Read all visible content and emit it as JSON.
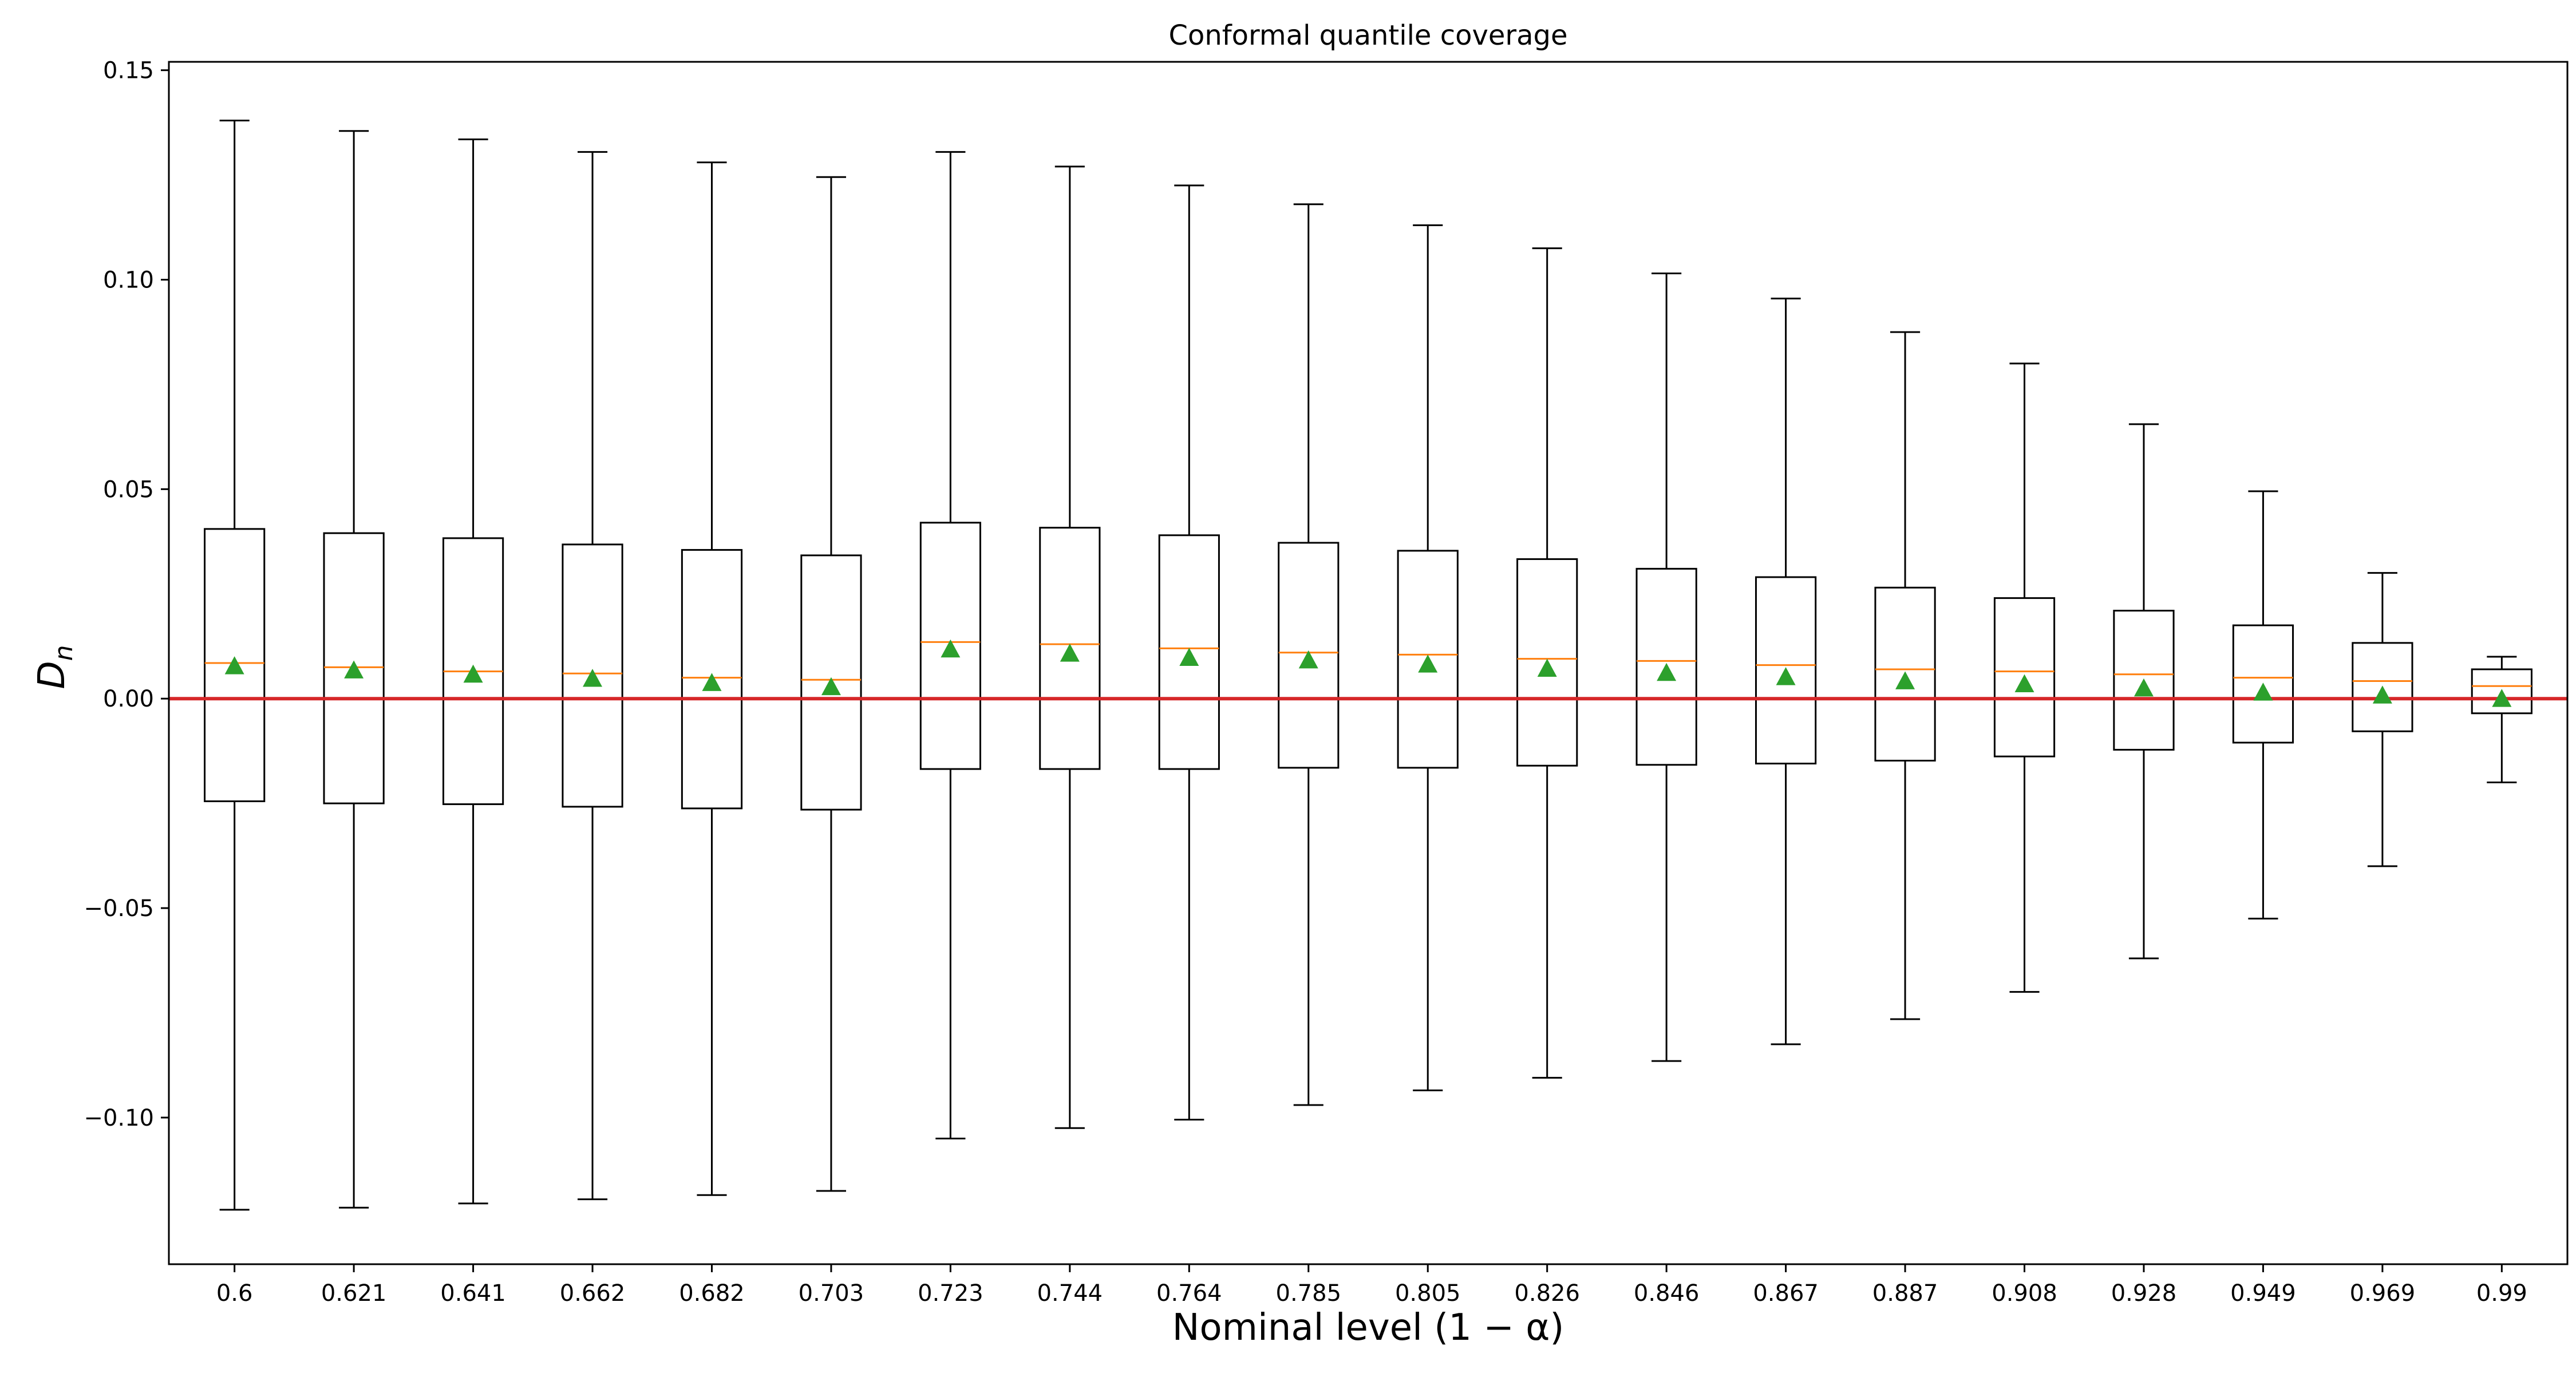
{
  "chart_data": {
    "type": "box",
    "title": "Conformal quantile coverage",
    "xlabel": "Nominal level (1 − α)",
    "ylabel": {
      "main": "D",
      "sub": "n"
    },
    "ylim": [
      -0.135,
      0.152
    ],
    "yticks": [
      -0.1,
      -0.05,
      0.0,
      0.05,
      0.1,
      0.15
    ],
    "ytick_labels": [
      "−0.10",
      "−0.05",
      "0.00",
      "0.05",
      "0.10",
      "0.15"
    ],
    "grid": false,
    "reference_line": {
      "y": 0.0,
      "color": "#d62728"
    },
    "colors": {
      "box": "#000000",
      "median": "#ff7f0e",
      "mean": "#2ca02c",
      "reference": "#d62728"
    },
    "categories": [
      "0.6",
      "0.621",
      "0.641",
      "0.662",
      "0.682",
      "0.703",
      "0.723",
      "0.744",
      "0.764",
      "0.785",
      "0.805",
      "0.826",
      "0.846",
      "0.867",
      "0.887",
      "0.908",
      "0.928",
      "0.949",
      "0.969",
      "0.99"
    ],
    "boxes": [
      {
        "whisker_low": -0.122,
        "q1": -0.0245,
        "median": 0.0085,
        "q3": 0.0405,
        "whisker_high": 0.138,
        "mean": 0.0078
      },
      {
        "whisker_low": -0.1215,
        "q1": -0.025,
        "median": 0.0075,
        "q3": 0.0395,
        "whisker_high": 0.1355,
        "mean": 0.0068
      },
      {
        "whisker_low": -0.1205,
        "q1": -0.0252,
        "median": 0.0065,
        "q3": 0.0383,
        "whisker_high": 0.1335,
        "mean": 0.0058
      },
      {
        "whisker_low": -0.1195,
        "q1": -0.0258,
        "median": 0.006,
        "q3": 0.0368,
        "whisker_high": 0.1305,
        "mean": 0.0048
      },
      {
        "whisker_low": -0.1185,
        "q1": -0.0262,
        "median": 0.005,
        "q3": 0.0355,
        "whisker_high": 0.128,
        "mean": 0.0038
      },
      {
        "whisker_low": -0.1175,
        "q1": -0.0265,
        "median": 0.0045,
        "q3": 0.0342,
        "whisker_high": 0.1245,
        "mean": 0.0028
      },
      {
        "whisker_low": -0.105,
        "q1": -0.0168,
        "median": 0.0135,
        "q3": 0.042,
        "whisker_high": 0.1305,
        "mean": 0.0118
      },
      {
        "whisker_low": -0.1025,
        "q1": -0.0168,
        "median": 0.013,
        "q3": 0.0408,
        "whisker_high": 0.127,
        "mean": 0.0108
      },
      {
        "whisker_low": -0.1005,
        "q1": -0.0168,
        "median": 0.012,
        "q3": 0.039,
        "whisker_high": 0.1225,
        "mean": 0.0098
      },
      {
        "whisker_low": -0.097,
        "q1": -0.0165,
        "median": 0.011,
        "q3": 0.0372,
        "whisker_high": 0.118,
        "mean": 0.0092
      },
      {
        "whisker_low": -0.0935,
        "q1": -0.0165,
        "median": 0.0105,
        "q3": 0.0353,
        "whisker_high": 0.113,
        "mean": 0.0082
      },
      {
        "whisker_low": -0.0905,
        "q1": -0.016,
        "median": 0.0095,
        "q3": 0.0333,
        "whisker_high": 0.1075,
        "mean": 0.0072
      },
      {
        "whisker_low": -0.0865,
        "q1": -0.0158,
        "median": 0.009,
        "q3": 0.031,
        "whisker_high": 0.1015,
        "mean": 0.0062
      },
      {
        "whisker_low": -0.0825,
        "q1": -0.0155,
        "median": 0.008,
        "q3": 0.029,
        "whisker_high": 0.0955,
        "mean": 0.0052
      },
      {
        "whisker_low": -0.0765,
        "q1": -0.0148,
        "median": 0.007,
        "q3": 0.0265,
        "whisker_high": 0.0875,
        "mean": 0.0042
      },
      {
        "whisker_low": -0.07,
        "q1": -0.0138,
        "median": 0.0065,
        "q3": 0.024,
        "whisker_high": 0.08,
        "mean": 0.0035
      },
      {
        "whisker_low": -0.062,
        "q1": -0.0122,
        "median": 0.0058,
        "q3": 0.021,
        "whisker_high": 0.0655,
        "mean": 0.0025
      },
      {
        "whisker_low": -0.0525,
        "q1": -0.0105,
        "median": 0.005,
        "q3": 0.0175,
        "whisker_high": 0.0495,
        "mean": 0.0015
      },
      {
        "whisker_low": -0.04,
        "q1": -0.0078,
        "median": 0.0042,
        "q3": 0.0133,
        "whisker_high": 0.03,
        "mean": 0.0008
      },
      {
        "whisker_low": -0.02,
        "q1": -0.0035,
        "median": 0.003,
        "q3": 0.007,
        "whisker_high": 0.01,
        "mean": 0.0
      }
    ]
  }
}
